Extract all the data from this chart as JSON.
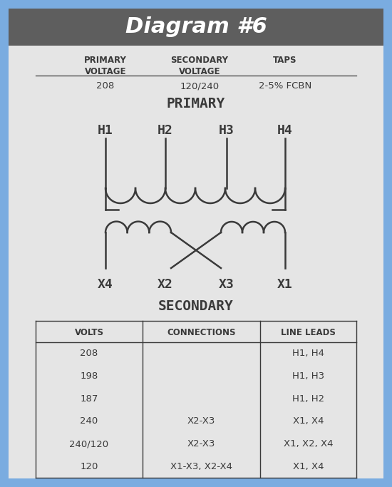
{
  "title": "Diagram #6",
  "title_bg": "#5e5e5e",
  "title_color": "#ffffff",
  "bg_color": "#e5e5e5",
  "border_color": "#7aace0",
  "text_color": "#3a3a3a",
  "primary_voltage": "208",
  "secondary_voltage": "120/240",
  "taps": "2-5% FCBN",
  "h_labels": [
    "H1",
    "H2",
    "H3",
    "H4"
  ],
  "x_labels": [
    "X4",
    "X2",
    "X3",
    "X1"
  ],
  "top_headers": [
    "PRIMARY\nVOLTAGE",
    "SECONDARY\nVOLTAGE",
    "TAPS"
  ],
  "top_values": [
    "208",
    "120/240",
    "2-5% FCBN"
  ],
  "secondary_header": [
    "VOLTS",
    "CONNECTIONS",
    "LINE LEADS"
  ],
  "table_rows": [
    [
      "208",
      "",
      "H1, H4"
    ],
    [
      "198",
      "",
      "H1, H3"
    ],
    [
      "187",
      "",
      "H1, H2"
    ],
    [
      "240",
      "X2-X3",
      "X1, X4"
    ],
    [
      "240/120",
      "X2-X3",
      "X1, X2, X4"
    ],
    [
      "120",
      "X1-X3, X2-X4",
      "X1, X4"
    ]
  ],
  "line_color": "#3a3a3a"
}
